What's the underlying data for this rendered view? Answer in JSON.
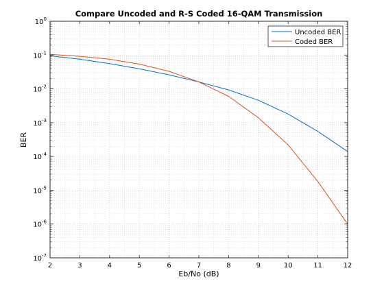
{
  "chart_data": {
    "type": "line",
    "title": "Compare Uncoded and R-S Coded 16-QAM Transmission",
    "xlabel": "Eb/No (dB)",
    "ylabel": "BER",
    "xlim": [
      2,
      12
    ],
    "ylim": [
      1e-07,
      1
    ],
    "yscale": "log",
    "grid": true,
    "minor_grid": true,
    "legend_position": "top-right",
    "x": [
      2,
      3,
      4,
      5,
      6,
      7,
      8,
      9,
      10,
      11,
      12
    ],
    "series": [
      {
        "name": "Uncoded BER",
        "color": "#0072BD",
        "values": [
          0.095,
          0.075,
          0.056,
          0.039,
          0.026,
          0.016,
          0.0093,
          0.0046,
          0.0018,
          0.00055,
          0.00014
        ]
      },
      {
        "name": "Coded BER",
        "color": "#D95319",
        "values": [
          0.105,
          0.092,
          0.075,
          0.054,
          0.033,
          0.016,
          0.006,
          0.0014,
          0.00022,
          1.8e-05,
          1e-06
        ]
      }
    ],
    "x_ticks": [
      "2",
      "3",
      "4",
      "5",
      "6",
      "7",
      "8",
      "9",
      "10",
      "11",
      "12"
    ],
    "y_ticks": [
      {
        "base": "10",
        "exp": "0"
      },
      {
        "base": "10",
        "exp": "-1"
      },
      {
        "base": "10",
        "exp": "-2"
      },
      {
        "base": "10",
        "exp": "-3"
      },
      {
        "base": "10",
        "exp": "-4"
      },
      {
        "base": "10",
        "exp": "-5"
      },
      {
        "base": "10",
        "exp": "-6"
      },
      {
        "base": "10",
        "exp": "-7"
      }
    ]
  }
}
